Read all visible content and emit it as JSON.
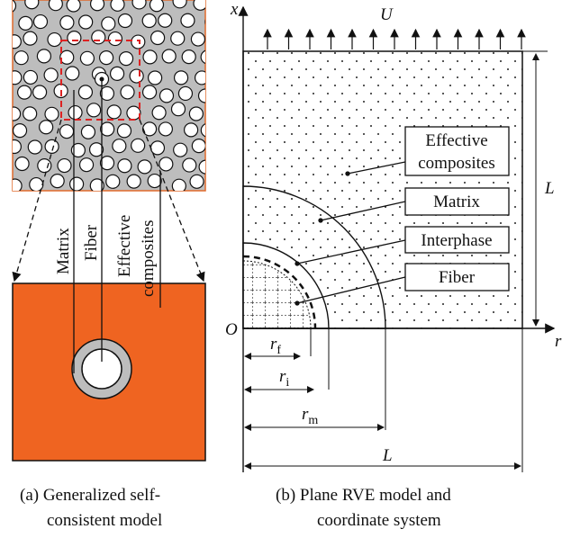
{
  "panel_a": {
    "labels": {
      "matrix": "Matrix",
      "fiber": "Fiber",
      "effective": [
        "Effective",
        "composites"
      ]
    },
    "caption": [
      "(a) Generalized self-",
      "consistent model"
    ]
  },
  "panel_b": {
    "axes": {
      "x": "x",
      "r": "r",
      "origin": "O",
      "load": "U",
      "side_length": "L"
    },
    "boxes": {
      "effective": [
        "Effective",
        "composites"
      ],
      "matrix": "Matrix",
      "interphase": "Interphase",
      "fiber": "Fiber"
    },
    "radii": [
      {
        "symbol": "r",
        "subscript": "f"
      },
      {
        "symbol": "r",
        "subscript": "i"
      },
      {
        "symbol": "r",
        "subscript": "m"
      }
    ],
    "bottom_length": "L",
    "caption": [
      "(b) Plane RVE model and",
      "coordinate system"
    ]
  }
}
